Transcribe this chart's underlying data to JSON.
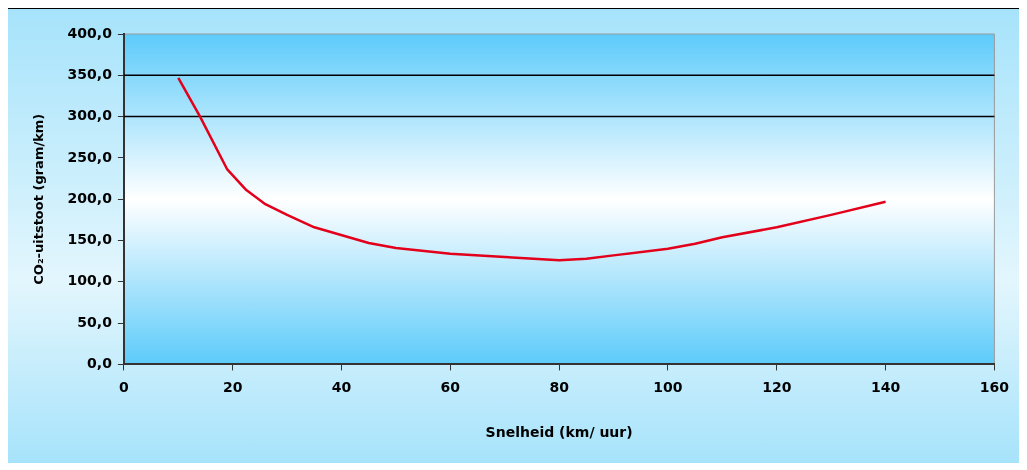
{
  "chart_data": {
    "type": "line",
    "xlabel": "Snelheid (km/ uur)",
    "ylabel": "CO₂-uitstoot (gram/km)",
    "x": [
      10,
      14,
      19,
      22.5,
      26,
      30,
      35,
      45,
      50,
      60,
      70,
      80,
      85,
      90,
      100,
      105,
      110,
      120,
      130,
      140
    ],
    "series": [
      {
        "color": "#e3001b",
        "values": [
          347,
          300,
          236,
          211,
          194,
          181,
          166,
          147,
          141,
          134,
          130,
          126,
          128,
          132,
          140,
          146,
          154,
          166,
          181,
          197
        ]
      }
    ],
    "xlim": [
      0,
      160
    ],
    "xticks": [
      0,
      20,
      40,
      60,
      80,
      100,
      120,
      140,
      160
    ],
    "ylim": [
      0,
      400
    ],
    "yticks": [
      {
        "value": 0,
        "label": "0,0"
      },
      {
        "value": 50,
        "label": "50,0"
      },
      {
        "value": 100,
        "label": "100,0"
      },
      {
        "value": 150,
        "label": "150,0"
      },
      {
        "value": 200,
        "label": "200,0"
      },
      {
        "value": 250,
        "label": "250,0"
      },
      {
        "value": 300,
        "label": "300,0"
      },
      {
        "value": 350,
        "label": "350,0"
      },
      {
        "value": 400,
        "label": "400,0"
      }
    ],
    "ref_lines": [
      {
        "axis": "y",
        "value": 300,
        "color": "#000000"
      },
      {
        "axis": "y",
        "value": 350,
        "color": "#000000"
      }
    ],
    "grid": false,
    "legend": false,
    "marker": "none",
    "line_style": "solid"
  }
}
